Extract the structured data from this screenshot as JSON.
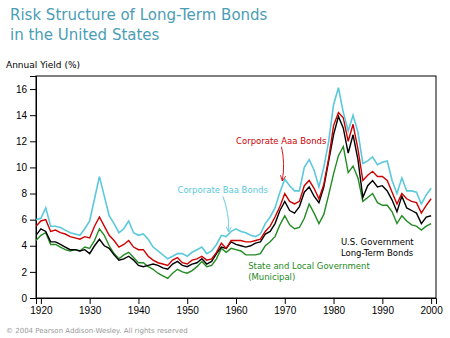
{
  "chart_data": {
    "type": "line",
    "title": "Risk Structure of Long-Term Bonds",
    "subtitle": "in the United States",
    "title_color": "#4a9db5",
    "ylabel": "Annual Yield (%)",
    "xlim": [
      1919,
      2001
    ],
    "ylim": [
      0,
      17
    ],
    "xticks": [
      1920,
      1930,
      1940,
      1950,
      1960,
      1970,
      1980,
      1990,
      2000
    ],
    "yticks": [
      0,
      2,
      4,
      6,
      8,
      10,
      12,
      14,
      16
    ],
    "grid": false,
    "x": [
      1919,
      1920,
      1921,
      1922,
      1923,
      1924,
      1925,
      1926,
      1927,
      1928,
      1929,
      1930,
      1931,
      1932,
      1933,
      1934,
      1935,
      1936,
      1937,
      1938,
      1939,
      1940,
      1941,
      1942,
      1943,
      1944,
      1945,
      1946,
      1947,
      1948,
      1949,
      1950,
      1951,
      1952,
      1953,
      1954,
      1955,
      1956,
      1957,
      1958,
      1959,
      1960,
      1961,
      1962,
      1963,
      1964,
      1965,
      1966,
      1967,
      1968,
      1969,
      1970,
      1971,
      1972,
      1973,
      1974,
      1975,
      1976,
      1977,
      1978,
      1979,
      1980,
      1981,
      1982,
      1983,
      1984,
      1985,
      1986,
      1987,
      1988,
      1989,
      1990,
      1991,
      1992,
      1993,
      1994,
      1995,
      1996,
      1997,
      1998,
      1999,
      2000
    ],
    "series": [
      {
        "color": "#228B22",
        "values": [
          4.4,
          4.8,
          5.0,
          4.1,
          4.1,
          3.9,
          3.7,
          3.6,
          3.7,
          3.6,
          3.9,
          3.8,
          4.4,
          5.3,
          4.8,
          4.0,
          3.4,
          3.0,
          3.3,
          3.5,
          3.1,
          2.7,
          2.7,
          2.4,
          2.2,
          1.9,
          1.7,
          1.5,
          1.9,
          2.2,
          2.0,
          1.9,
          2.1,
          2.4,
          2.8,
          2.4,
          2.5,
          3.0,
          3.8,
          3.5,
          3.8,
          3.7,
          3.6,
          3.3,
          3.3,
          3.3,
          3.4,
          4.0,
          4.3,
          4.7,
          5.6,
          6.3,
          5.6,
          5.3,
          5.4,
          6.1,
          7.2,
          6.5,
          5.7,
          6.4,
          7.9,
          9.5,
          10.9,
          11.6,
          9.6,
          10.1,
          9.2,
          7.4,
          7.7,
          8.0,
          7.3,
          7.1,
          7.1,
          6.6,
          5.7,
          6.3,
          5.9,
          5.6,
          5.5,
          5.2,
          5.5,
          5.7
        ]
      },
      {
        "color": "#000000",
        "values": [
          4.8,
          5.3,
          5.1,
          4.3,
          4.3,
          4.1,
          3.9,
          3.7,
          3.7,
          3.6,
          3.7,
          3.4,
          4.0,
          4.5,
          4.0,
          3.8,
          3.3,
          2.9,
          3.0,
          3.2,
          2.9,
          2.5,
          2.4,
          2.5,
          2.6,
          2.5,
          2.3,
          2.2,
          2.6,
          2.8,
          2.5,
          2.4,
          2.6,
          2.7,
          3.0,
          2.6,
          2.8,
          3.4,
          3.9,
          3.8,
          4.3,
          4.1,
          4.0,
          3.9,
          4.0,
          4.2,
          4.3,
          4.9,
          5.1,
          5.7,
          6.7,
          7.4,
          6.7,
          6.5,
          7.0,
          8.1,
          8.5,
          7.8,
          7.3,
          8.5,
          10.5,
          12.5,
          13.9,
          13.0,
          11.1,
          12.5,
          10.6,
          7.7,
          8.6,
          9.0,
          8.5,
          8.6,
          8.2,
          7.5,
          6.6,
          7.8,
          6.9,
          6.7,
          6.5,
          5.7,
          6.2,
          6.3
        ]
      },
      {
        "color": "#cc0000",
        "values": [
          5.5,
          5.9,
          6.0,
          5.1,
          5.2,
          5.0,
          4.9,
          4.7,
          4.6,
          4.5,
          4.7,
          4.6,
          5.5,
          6.2,
          5.5,
          4.8,
          4.4,
          3.9,
          4.1,
          4.4,
          3.9,
          3.7,
          3.7,
          3.2,
          2.9,
          2.7,
          2.6,
          2.5,
          2.9,
          3.1,
          2.7,
          2.6,
          2.9,
          3.0,
          3.2,
          2.9,
          3.0,
          3.5,
          4.2,
          3.8,
          4.4,
          4.4,
          4.4,
          4.3,
          4.3,
          4.4,
          4.5,
          5.1,
          5.5,
          6.2,
          7.0,
          8.0,
          7.4,
          7.2,
          7.4,
          8.6,
          9.0,
          8.4,
          7.6,
          8.7,
          10.7,
          13.2,
          14.2,
          13.8,
          12.0,
          13.3,
          11.4,
          9.0,
          9.4,
          9.7,
          9.3,
          9.3,
          9.0,
          8.1,
          7.2,
          8.0,
          7.6,
          7.4,
          7.3,
          6.5,
          7.1,
          7.6
        ]
      },
      {
        "color": "#5bc8dc",
        "values": [
          6.0,
          6.1,
          6.9,
          5.5,
          5.5,
          5.4,
          5.2,
          5.0,
          4.9,
          4.8,
          5.3,
          5.9,
          7.6,
          9.3,
          7.8,
          6.3,
          5.7,
          5.0,
          5.3,
          5.9,
          5.0,
          4.8,
          4.9,
          4.5,
          3.9,
          3.6,
          3.3,
          3.0,
          3.2,
          3.4,
          3.4,
          3.2,
          3.5,
          3.7,
          3.9,
          3.4,
          3.6,
          4.1,
          4.8,
          4.7,
          5.1,
          5.3,
          5.1,
          5.0,
          4.8,
          4.7,
          4.9,
          5.7,
          6.2,
          6.9,
          8.1,
          9.1,
          8.6,
          8.2,
          8.2,
          10.0,
          10.6,
          9.8,
          8.5,
          10.0,
          12.0,
          14.8,
          16.1,
          14.2,
          12.8,
          14.0,
          12.7,
          10.3,
          10.5,
          10.8,
          10.2,
          10.4,
          10.5,
          9.0,
          8.0,
          9.2,
          8.2,
          8.2,
          8.1,
          7.2,
          7.9,
          8.4
        ]
      }
    ],
    "annotations": [
      {
        "text": "Corporate Aaa Bonds",
        "x": 1960,
        "y": 12.0,
        "arrow_x": 1969.5,
        "arrow_y": 9.0,
        "color": "#cc0000"
      },
      {
        "text": "Corporate Baa Bonds",
        "x": 1948,
        "y": 8.2,
        "arrow_x": 1958.5,
        "arrow_y": 5.1,
        "color": "#5bc8dc"
      },
      {
        "text": "U.S. Government\nLong-Term Bonds",
        "x": 1981.5,
        "y": 4.6,
        "color": "#000000"
      },
      {
        "text": "State and Local Government\n(Municipal)",
        "x": 1962.5,
        "y": 2.8,
        "color": "#228B22"
      },
      {
        "text": "© 2004 Pearson Addison-Wesley. All rights reserved",
        "color": "#999999"
      }
    ]
  }
}
